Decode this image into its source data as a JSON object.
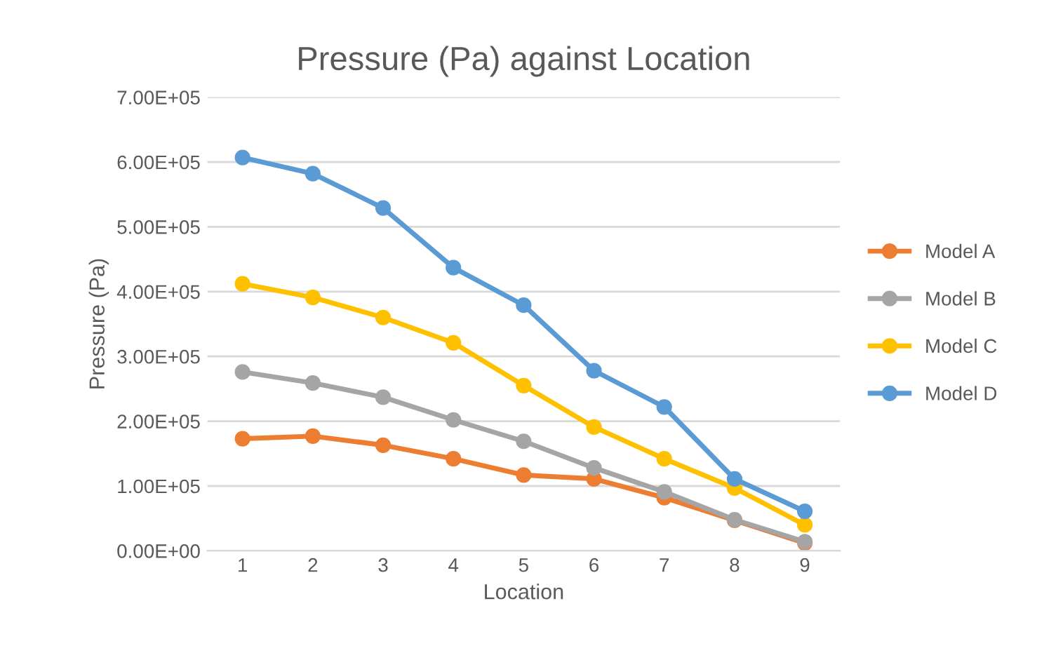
{
  "chart_data": {
    "type": "line",
    "title": "Pressure (Pa) against Location",
    "xlabel": "Location",
    "ylabel": "Pressure (Pa)",
    "categories": [
      "1",
      "2",
      "3",
      "4",
      "5",
      "6",
      "7",
      "8",
      "9"
    ],
    "series": [
      {
        "name": "Model A",
        "color": "#ed7d31",
        "values": [
          173000,
          177000,
          163000,
          142000,
          117000,
          111000,
          82000,
          47000,
          12000
        ]
      },
      {
        "name": "Model B",
        "color": "#a5a5a5",
        "values": [
          276000,
          259000,
          237000,
          202000,
          169000,
          128000,
          91000,
          48000,
          14000
        ]
      },
      {
        "name": "Model C",
        "color": "#ffc000",
        "values": [
          412000,
          391000,
          360000,
          321000,
          255000,
          191000,
          142000,
          97000,
          40000
        ]
      },
      {
        "name": "Model D",
        "color": "#5b9bd5",
        "values": [
          607000,
          582000,
          529000,
          437000,
          379000,
          278000,
          222000,
          111000,
          61000
        ]
      }
    ],
    "ylim": [
      0,
      700000
    ],
    "yticks": [
      {
        "value": 0,
        "label": "0.00E+00"
      },
      {
        "value": 100000,
        "label": "1.00E+05"
      },
      {
        "value": 200000,
        "label": "2.00E+05"
      },
      {
        "value": 300000,
        "label": "3.00E+05"
      },
      {
        "value": 400000,
        "label": "4.00E+05"
      },
      {
        "value": 500000,
        "label": "5.00E+05"
      },
      {
        "value": 600000,
        "label": "6.00E+05"
      },
      {
        "value": 700000,
        "label": "7.00E+05"
      }
    ],
    "grid": "y",
    "legend": "right",
    "marker": "circle",
    "line_style": "solid"
  }
}
